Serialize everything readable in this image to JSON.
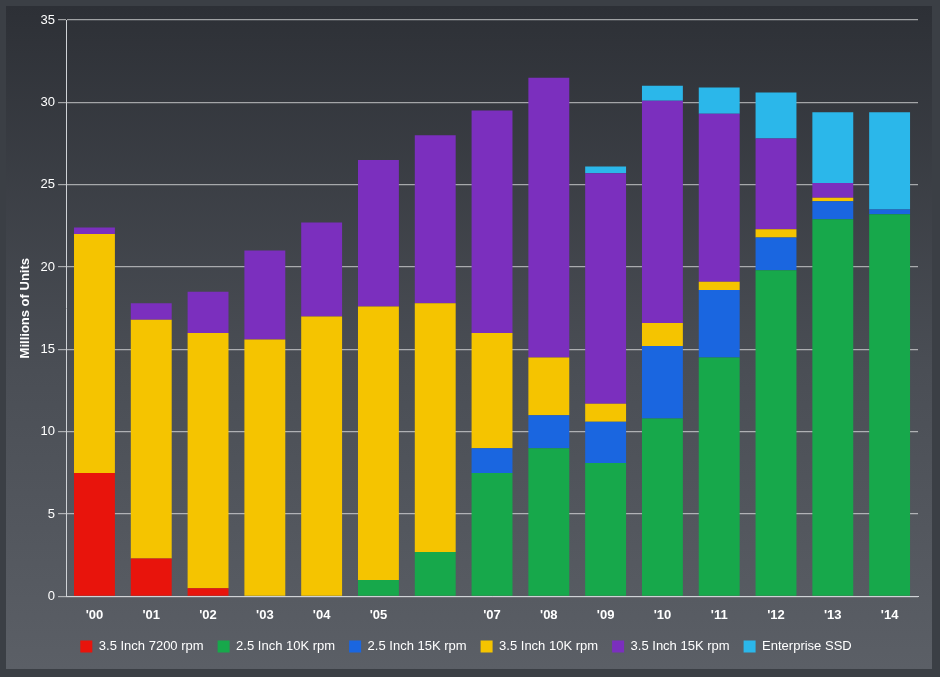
{
  "chart_data": {
    "type": "bar",
    "stacked": true,
    "grid": true,
    "legend": "bottom",
    "y_label": "Millions of Units",
    "categories": [
      "'00",
      "'01",
      "'02",
      "'03",
      "'04",
      "'05",
      null,
      "'07",
      "'08",
      "'09",
      "'10",
      "'11",
      "'12",
      "'13",
      "'14"
    ],
    "ylim": [
      0,
      35
    ],
    "yticks": [
      0,
      5,
      10,
      15,
      20,
      25,
      30,
      35
    ],
    "series": [
      {
        "name": "3.5 Inch 7200 rpm",
        "color": "#e8140c",
        "values": [
          7.5,
          2.3,
          0.5,
          0,
          0,
          0,
          0,
          0,
          0,
          0,
          0,
          0,
          0,
          0,
          0
        ]
      },
      {
        "name": "2.5 Inch 10K rpm",
        "color": "#17a84b",
        "values": [
          0,
          0,
          0,
          0,
          0,
          1.0,
          2.7,
          7.5,
          9.0,
          8.1,
          10.8,
          14.5,
          19.8,
          22.9,
          23.2
        ]
      },
      {
        "name": "2.5 Inch 15K rpm",
        "color": "#1a66e0",
        "values": [
          0,
          0,
          0,
          0,
          0,
          0,
          0,
          1.5,
          2.0,
          2.5,
          4.4,
          4.1,
          2.0,
          1.1,
          0.3
        ]
      },
      {
        "name": "3.5 Inch 10K rpm",
        "color": "#f5c400",
        "values": [
          14.5,
          14.5,
          15.5,
          15.6,
          17.0,
          16.6,
          15.1,
          7.0,
          3.5,
          1.1,
          1.4,
          0.5,
          0.5,
          0.2,
          0
        ]
      },
      {
        "name": "3.5 Inch 15K rpm",
        "color": "#7b2fbe",
        "values": [
          0.4,
          1.0,
          2.5,
          5.4,
          5.7,
          8.9,
          10.2,
          13.5,
          17.0,
          14.0,
          13.5,
          10.2,
          5.5,
          0.9,
          0
        ]
      },
      {
        "name": "Enterprise SSD",
        "color": "#2bb7ea",
        "values": [
          0,
          0,
          0,
          0,
          0,
          0,
          0,
          0,
          0,
          0.4,
          0.9,
          1.6,
          2.8,
          4.3,
          5.9
        ]
      }
    ]
  }
}
